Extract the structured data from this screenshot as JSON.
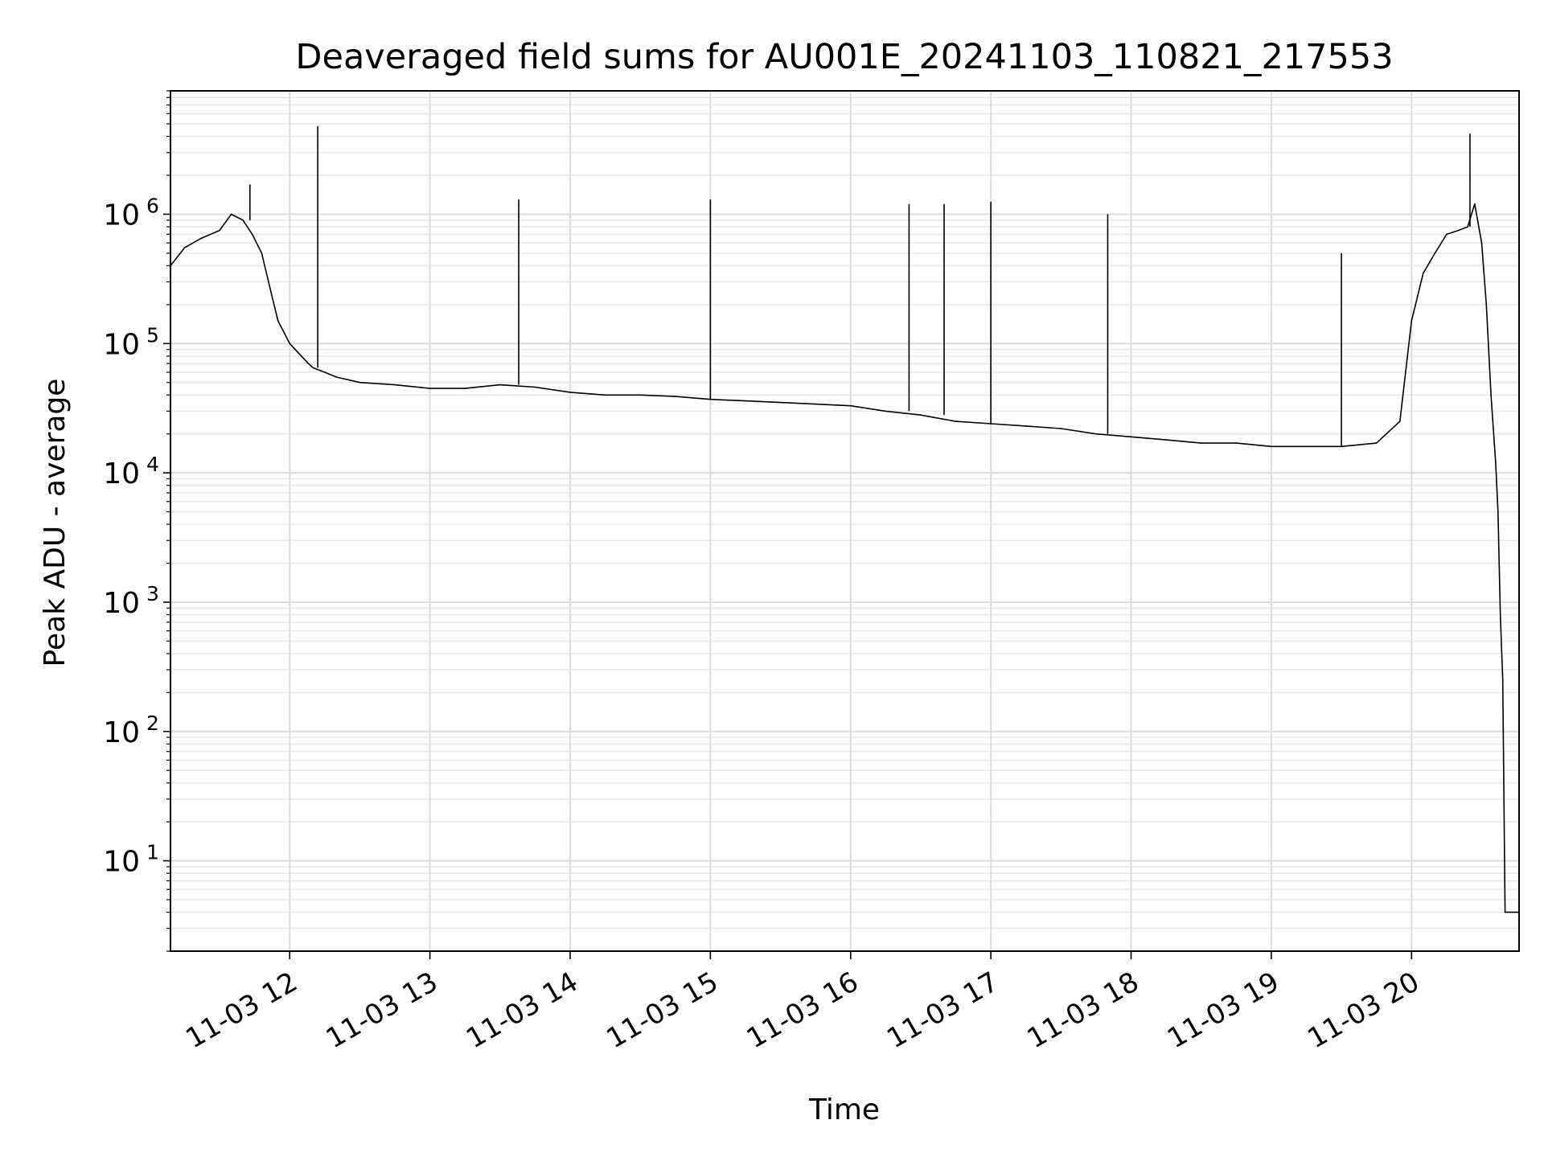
{
  "chart_data": {
    "type": "line",
    "title": "Deaveraged field sums for AU001E_20241103_110821_217553",
    "xlabel": "Time",
    "ylabel": "Peak ADU - average",
    "yscale": "log",
    "xlim": [
      "11-03 11:09",
      "11-03 20:46"
    ],
    "ylim": [
      2,
      9000000
    ],
    "grid": true,
    "line_color": "#000000",
    "x_ticks": [
      {
        "t": "11-03 12:00",
        "label": "11-03 12"
      },
      {
        "t": "11-03 13:00",
        "label": "11-03 13"
      },
      {
        "t": "11-03 14:00",
        "label": "11-03 14"
      },
      {
        "t": "11-03 15:00",
        "label": "11-03 15"
      },
      {
        "t": "11-03 16:00",
        "label": "11-03 16"
      },
      {
        "t": "11-03 17:00",
        "label": "11-03 17"
      },
      {
        "t": "11-03 18:00",
        "label": "11-03 18"
      },
      {
        "t": "11-03 19:00",
        "label": "11-03 19"
      },
      {
        "t": "11-03 20:00",
        "label": "11-03 20"
      }
    ],
    "y_ticks": [
      {
        "value": 10,
        "base": "10",
        "exp": "1"
      },
      {
        "value": 100,
        "base": "10",
        "exp": "2"
      },
      {
        "value": 1000,
        "base": "10",
        "exp": "3"
      },
      {
        "value": 10000,
        "base": "10",
        "exp": "4"
      },
      {
        "value": 100000,
        "base": "10",
        "exp": "5"
      },
      {
        "value": 1000000,
        "base": "10",
        "exp": "6"
      }
    ],
    "series": [
      {
        "x": [
          "11-03 11:09",
          "11-03 11:15",
          "11-03 11:22",
          "11-03 11:30",
          "11-03 11:35",
          "11-03 11:40",
          "11-03 11:44",
          "11-03 11:48",
          "11-03 11:52",
          "11-03 11:55",
          "11-03 12:00",
          "11-03 12:05",
          "11-03 12:08",
          "11-03 12:10",
          "11-03 12:15",
          "11-03 12:20",
          "11-03 12:30",
          "11-03 12:45",
          "11-03 13:00",
          "11-03 13:15",
          "11-03 13:30",
          "11-03 13:45",
          "11-03 14:00",
          "11-03 14:15",
          "11-03 14:30",
          "11-03 14:45",
          "11-03 15:00",
          "11-03 15:15",
          "11-03 15:30",
          "11-03 15:45",
          "11-03 16:00",
          "11-03 16:15",
          "11-03 16:30",
          "11-03 16:45",
          "11-03 17:00",
          "11-03 17:15",
          "11-03 17:30",
          "11-03 17:45",
          "11-03 18:00",
          "11-03 18:15",
          "11-03 18:30",
          "11-03 18:45",
          "11-03 19:00",
          "11-03 19:15",
          "11-03 19:30",
          "11-03 19:45",
          "11-03 19:55",
          "11-03 20:00",
          "11-03 20:05",
          "11-03 20:10",
          "11-03 20:15",
          "11-03 20:20",
          "11-03 20:24",
          "11-03 20:27",
          "11-03 20:30",
          "11-03 20:32",
          "11-03 20:34",
          "11-03 20:36",
          "11-03 20:37",
          "11-03 20:38",
          "11-03 20:39",
          "11-03 20:40",
          "11-03 20:42",
          "11-03 20:44",
          "11-03 20:46"
        ],
        "values": [
          400000,
          550000,
          650000,
          750000,
          1000000,
          900000,
          700000,
          500000,
          250000,
          150000,
          100000,
          80000,
          70000,
          65000,
          60000,
          55000,
          50000,
          48000,
          45000,
          45000,
          48000,
          46000,
          42000,
          40000,
          40000,
          39000,
          37000,
          36000,
          35000,
          34000,
          33000,
          30000,
          28000,
          25000,
          24000,
          23000,
          22000,
          20000,
          19000,
          18000,
          17000,
          17000,
          16000,
          16000,
          16000,
          17000,
          25000,
          150000,
          350000,
          500000,
          700000,
          750000,
          800000,
          1200000,
          600000,
          200000,
          40000,
          12000,
          5000,
          800,
          250,
          4,
          4,
          4,
          4
        ]
      }
    ],
    "spikes": [
      {
        "x": "11-03 12:12",
        "y": 4800000
      },
      {
        "x": "11-03 11:43",
        "y": 1700000
      },
      {
        "x": "11-03 13:38",
        "y": 1300000
      },
      {
        "x": "11-03 15:00",
        "y": 1300000
      },
      {
        "x": "11-03 16:25",
        "y": 1200000
      },
      {
        "x": "11-03 16:40",
        "y": 1200000
      },
      {
        "x": "11-03 17:00",
        "y": 1250000
      },
      {
        "x": "11-03 17:50",
        "y": 1000000
      },
      {
        "x": "11-03 19:30",
        "y": 500000
      },
      {
        "x": "11-03 20:25",
        "y": 4200000
      }
    ]
  }
}
